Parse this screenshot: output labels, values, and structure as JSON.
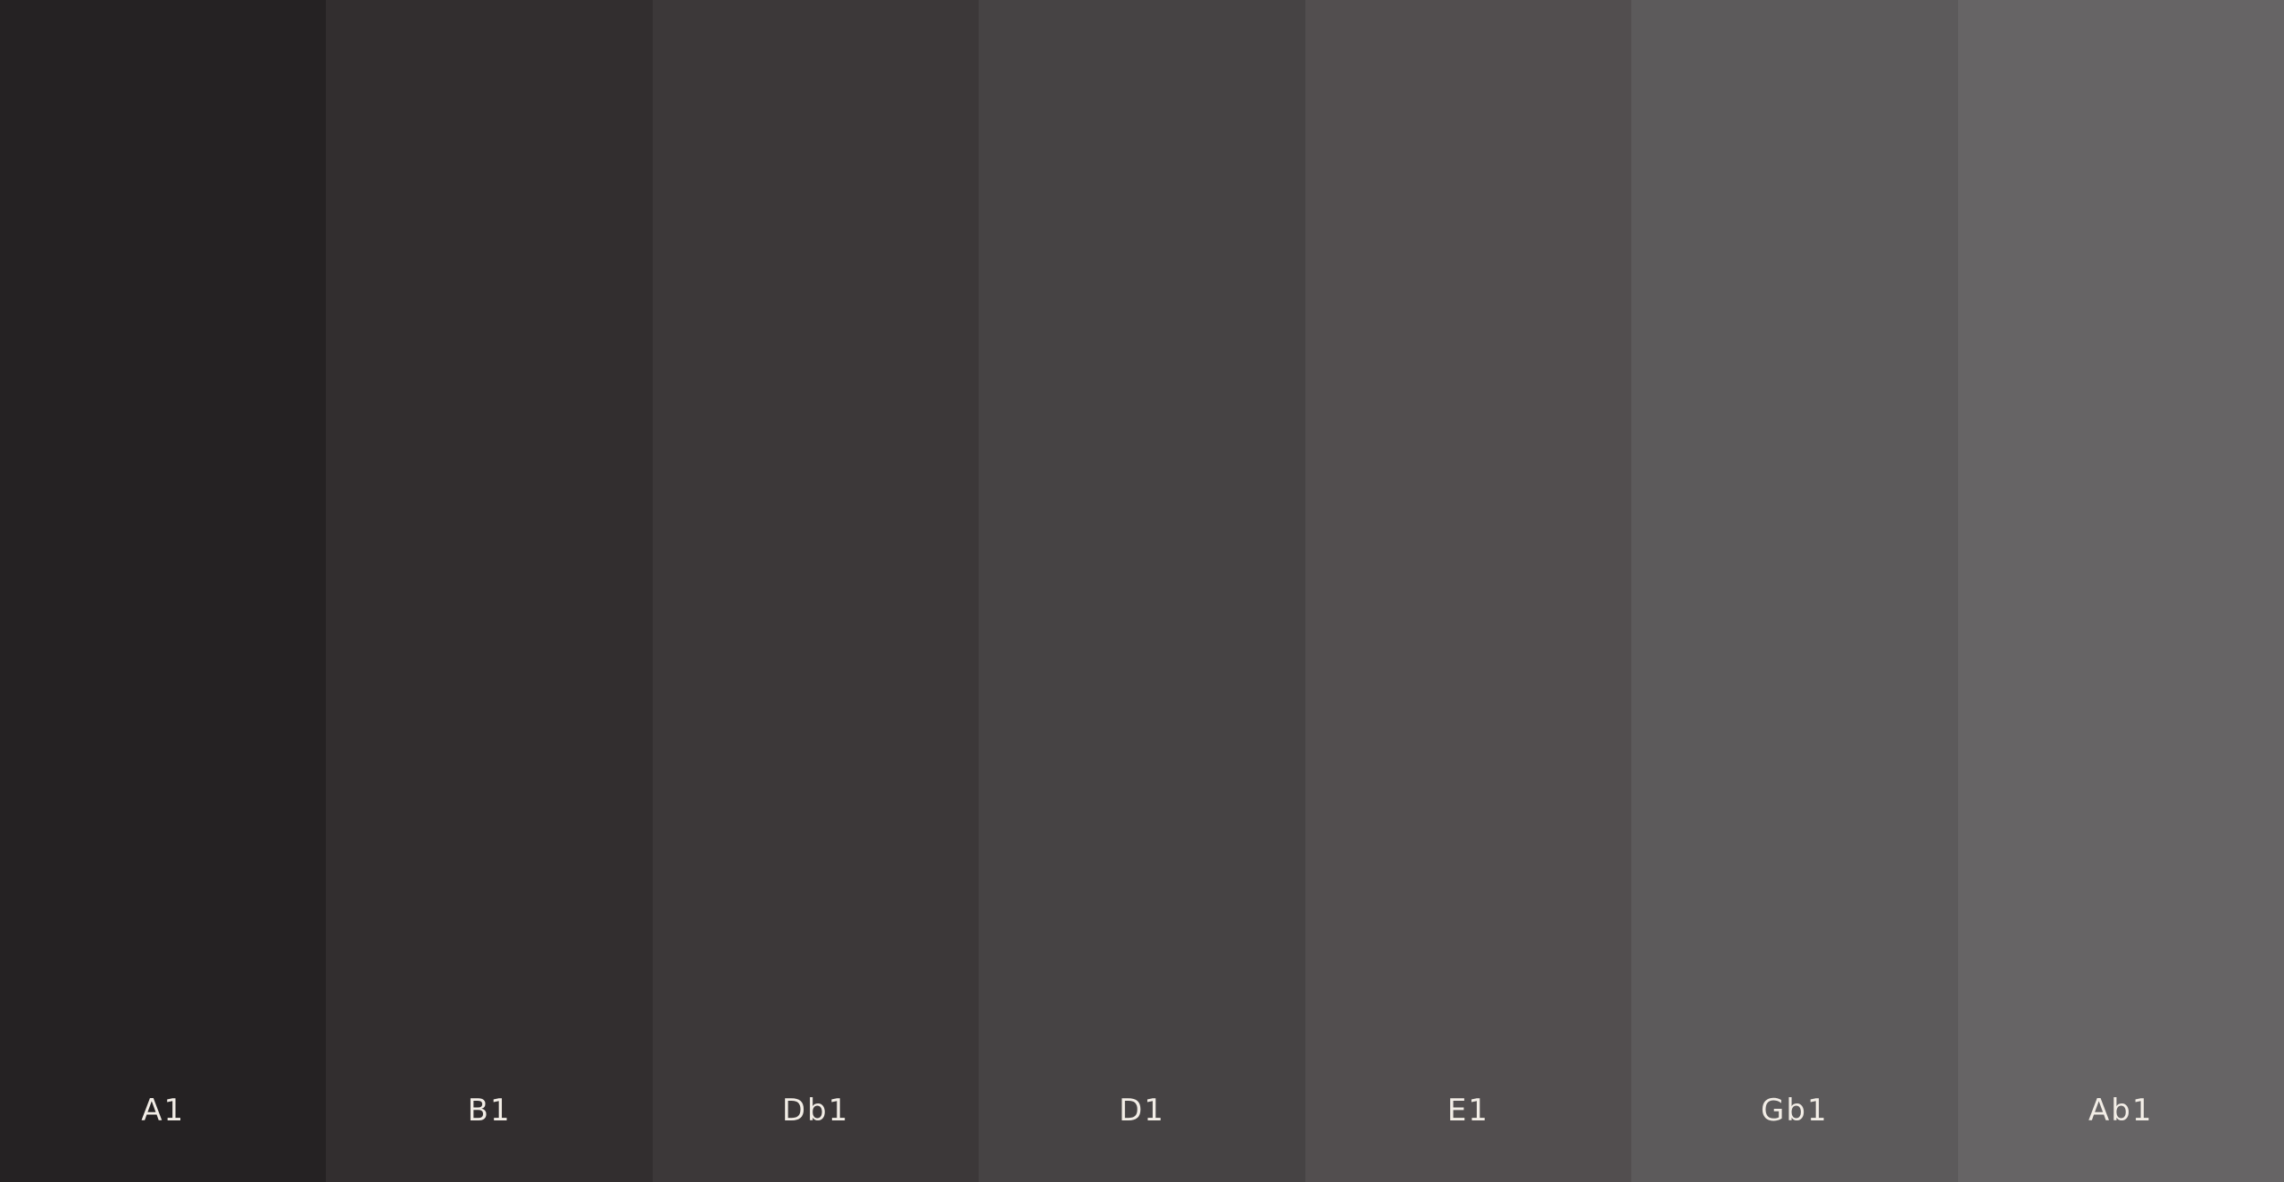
{
  "swatches": [
    {
      "label": "A1",
      "color": "#252223"
    },
    {
      "label": "B1",
      "color": "#322e2f"
    },
    {
      "label": "Db1",
      "color": "#3c3839"
    },
    {
      "label": "D1",
      "color": "#464344"
    },
    {
      "label": "E1",
      "color": "#524e4f"
    },
    {
      "label": "Gb1",
      "color": "#5c5a5b"
    },
    {
      "label": "Ab1",
      "color": "#666465"
    }
  ]
}
